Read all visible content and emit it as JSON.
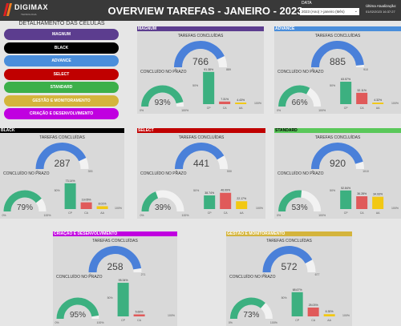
{
  "header": {
    "logo_name": "DIGIMAX",
    "logo_sub": "TECNOLOGIA",
    "title": "OVERVIEW TAREFAS - JANEIRO - 2023",
    "date_label": "DATA",
    "date_value": "2023 (Ano) > janeiro (Mês)",
    "updated_label": "Última Atualização:",
    "updated_value": "01/02/2023 16:37:27"
  },
  "legend": {
    "title": "DETALHAMENTO DAS CÉLULAS",
    "items": [
      {
        "label": "MAGNUM",
        "color": "#5c3d8f"
      },
      {
        "label": "BLACK",
        "color": "#000000"
      },
      {
        "label": "ADVANCE",
        "color": "#4a8edb"
      },
      {
        "label": "SELECT",
        "color": "#c00000"
      },
      {
        "label": "STANDARD",
        "color": "#3cb04a"
      },
      {
        "label": "GESTÃO E MONITORAMENTO",
        "color": "#d4b43c"
      },
      {
        "label": "CRIAÇÃO E DESENVOLVIMENTO",
        "color": "#c000e0"
      }
    ]
  },
  "labels": {
    "tarefas": "TAREFAS CONCLUÍDAS",
    "prazo": "CONCLUÍDO NO PRAZO",
    "zero": "0",
    "zero_pct": "0%",
    "hundred_pct": "100%",
    "cp": "CP",
    "ca": "CA",
    "aa": "AA"
  },
  "colors": {
    "gauge_blue": "#4a80d9",
    "gauge_green": "#3cb080",
    "gauge_bg": "#f2f2f2",
    "bar_cp": "#3cb080",
    "bar_ca": "#e05a5a",
    "bar_aa": "#f2c813"
  },
  "cells": [
    {
      "name": "MAGNUM",
      "color": "#5c3d8f",
      "title_color": "#ffffff",
      "tarefas": "766",
      "tarefas_max": "889",
      "tarefas_frac": 0.86,
      "prazo": "93%",
      "prazo_frac": 0.93,
      "bars": [
        {
          "label": "CP",
          "value": 91.38,
          "text": "91.38%"
        },
        {
          "label": "CA",
          "value": 7.31,
          "text": "7.31%"
        },
        {
          "label": "AA",
          "value": 4.43,
          "text": "4.43%"
        }
      ],
      "left_pct": "50%",
      "right_pct": "100%"
    },
    {
      "name": "ADVANCE",
      "color": "#4a8edb",
      "title_color": "#ffffff",
      "tarefas": "885",
      "tarefas_max": "910",
      "tarefas_frac": 0.97,
      "prazo": "66%",
      "prazo_frac": 0.66,
      "bars": [
        {
          "label": "CP",
          "value": 63.57,
          "text": "63.57%"
        },
        {
          "label": "CA",
          "value": 32.11,
          "text": "32.11%"
        },
        {
          "label": "AA",
          "value": 4.32,
          "text": "4.32%"
        }
      ],
      "left_pct": "50%",
      "right_pct": "100%"
    },
    {
      "name": "BLACK",
      "color": "#000000",
      "title_color": "#ffffff",
      "tarefas": "287",
      "tarefas_max": "333",
      "tarefas_frac": 0.86,
      "prazo": "79%",
      "prazo_frac": 0.79,
      "bars": [
        {
          "label": "CP",
          "value": 73.14,
          "text": "73.14%"
        },
        {
          "label": "CA",
          "value": 19.05,
          "text": "19.05%"
        },
        {
          "label": "AA",
          "value": 8.01,
          "text": "8.01%"
        }
      ],
      "left_pct": "50%",
      "right_pct": "100%"
    },
    {
      "name": "SELECT",
      "color": "#c00000",
      "title_color": "#ffffff",
      "tarefas": "441",
      "tarefas_max": "530",
      "tarefas_frac": 0.83,
      "prazo": "39%",
      "prazo_frac": 0.39,
      "bars": [
        {
          "label": "CP",
          "value": 38.74,
          "text": "38.74%"
        },
        {
          "label": "CA",
          "value": 46.09,
          "text": "46.09%"
        },
        {
          "label": "AA",
          "value": 22.17,
          "text": "22.17%"
        }
      ],
      "left_pct": "50%",
      "right_pct": "100%"
    },
    {
      "name": "STANDARD",
      "color": "#5ac85a",
      "title_color": "#000000",
      "tarefas": "920",
      "tarefas_max": "1010",
      "tarefas_frac": 0.91,
      "prazo": "53%",
      "prazo_frac": 0.53,
      "bars": [
        {
          "label": "CP",
          "value": 52.84,
          "text": "52.84%"
        },
        {
          "label": "CA",
          "value": 36.28,
          "text": "36.28%"
        },
        {
          "label": "AA",
          "value": 34.93,
          "text": "34.93%"
        }
      ],
      "left_pct": "50%",
      "right_pct": "100%"
    },
    {
      "name": "CRIAÇÃO E DESENVOLVIMENTO",
      "color": "#c000e0",
      "title_color": "#ffffff",
      "tarefas": "258",
      "tarefas_max": "271",
      "tarefas_frac": 0.95,
      "prazo": "95%",
      "prazo_frac": 0.95,
      "bars": [
        {
          "label": "CP",
          "value": 95.34,
          "text": "95.34%"
        },
        {
          "label": "CA",
          "value": 5.66,
          "text": "5.66%"
        }
      ],
      "left_pct": "50%",
      "right_pct": "100%"
    },
    {
      "name": "GESTÃO E MONITORAMENTO",
      "color": "#d4b43c",
      "title_color": "#ffffff",
      "tarefas": "572",
      "tarefas_max": "677",
      "tarefas_frac": 0.84,
      "prazo": "73%",
      "prazo_frac": 0.73,
      "bars": [
        {
          "label": "CP",
          "value": 68.67,
          "text": "68.67%"
        },
        {
          "label": "CA",
          "value": 25.03,
          "text": "25.03%"
        },
        {
          "label": "AA",
          "value": 6.3,
          "text": "6.30%"
        }
      ],
      "left_pct": "50%",
      "right_pct": "100%"
    }
  ]
}
